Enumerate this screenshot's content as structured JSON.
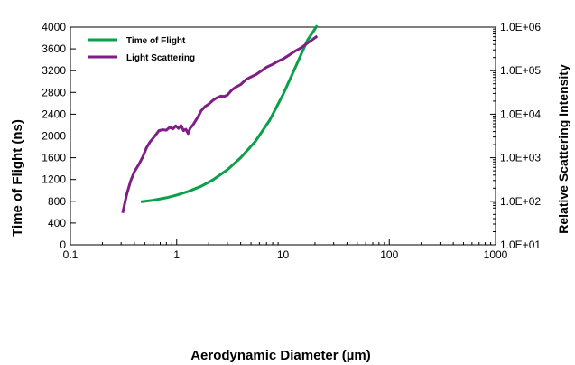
{
  "chart_data": {
    "type": "line",
    "title": "",
    "xlabel": "Aerodynamic Diameter (µm)",
    "ylabel": "Time of Flight (ns)",
    "y2label": "Relative Scattering Intensity",
    "x_scale": "log",
    "xlim": [
      0.1,
      1000
    ],
    "x_ticks": [
      0.1,
      1,
      10,
      100,
      1000
    ],
    "x_tick_labels": [
      "0.1",
      "1",
      "10",
      "100",
      "1000"
    ],
    "ylim": [
      0,
      4000
    ],
    "y_ticks": [
      0,
      400,
      800,
      1200,
      1600,
      2000,
      2400,
      2800,
      3200,
      3600,
      4000
    ],
    "y_tick_labels": [
      "0",
      "400",
      "800",
      "1200",
      "1600",
      "2000",
      "2400",
      "2800",
      "3200",
      "3600",
      "4000"
    ],
    "y2_scale": "log",
    "y2lim": [
      10,
      1000000
    ],
    "y2_ticks": [
      10,
      100,
      1000,
      10000,
      100000,
      1000000
    ],
    "y2_tick_labels": [
      "1.0E+01",
      "1.0E+02",
      "1.0E+03",
      "1.0E+04",
      "1.0E+05",
      "1.0E+06"
    ],
    "grid": false,
    "legend_position": "top-left",
    "series": [
      {
        "name": "Time of Flight",
        "axis": "left",
        "color": "#0aa04a",
        "x": [
          0.46,
          0.6,
          0.8,
          1.0,
          1.3,
          1.7,
          2.2,
          3.0,
          4.0,
          5.5,
          7.5,
          10,
          13,
          17,
          21
        ],
        "y": [
          790,
          820,
          865,
          915,
          985,
          1075,
          1195,
          1380,
          1600,
          1900,
          2290,
          2760,
          3250,
          3760,
          4030
        ]
      },
      {
        "name": "Light Scattering",
        "axis": "right",
        "color": "#7f1f86",
        "x": [
          0.31,
          0.34,
          0.37,
          0.4,
          0.44,
          0.48,
          0.52,
          0.56,
          0.62,
          0.68,
          0.74,
          0.8,
          0.86,
          0.92,
          0.98,
          1.04,
          1.1,
          1.16,
          1.22,
          1.28,
          1.34,
          1.42,
          1.5,
          1.6,
          1.7,
          1.85,
          2.0,
          2.2,
          2.4,
          2.6,
          2.8,
          3.0,
          3.3,
          3.6,
          4.0,
          4.5,
          5.0,
          5.6,
          6.3,
          7.0,
          8.0,
          9.0,
          10,
          11.5,
          13,
          15,
          17,
          19,
          21
        ],
        "y": [
          54,
          150,
          300,
          480,
          700,
          1050,
          1700,
          2300,
          3100,
          4200,
          4400,
          4300,
          5000,
          4600,
          5400,
          4700,
          5500,
          4200,
          4500,
          3600,
          4800,
          5600,
          7000,
          9000,
          12000,
          15000,
          17000,
          21000,
          24000,
          26000,
          25500,
          27500,
          36000,
          42000,
          48000,
          63000,
          72000,
          82000,
          100000,
          120000,
          140000,
          165000,
          185000,
          230000,
          280000,
          340000,
          430000,
          520000,
          620000
        ]
      }
    ]
  }
}
